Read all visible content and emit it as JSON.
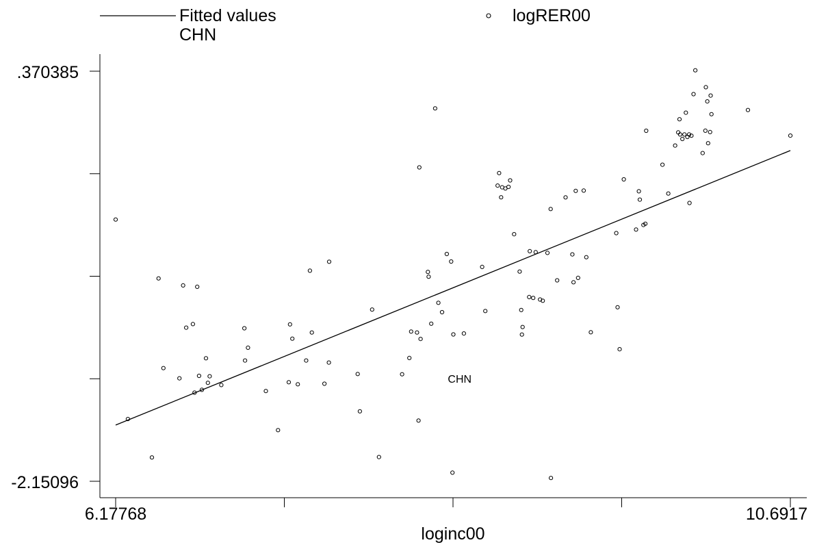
{
  "legend": {
    "line_label": "Fitted values",
    "marker_label": "logRER00",
    "point_label_caption": "CHN"
  },
  "chart_data": {
    "type": "scatter",
    "xlabel": "loginc00",
    "ylabel": "",
    "x_tick_labels": [
      "6.17768",
      "10.6917"
    ],
    "y_tick_labels": [
      ".370385",
      "-2.15096"
    ],
    "xlim": [
      6.17768,
      10.6917
    ],
    "ylim": [
      -2.15096,
      0.370385
    ],
    "legend_position": "top",
    "fit_line": {
      "name": "Fitted values",
      "x": [
        6.17768,
        10.6917
      ],
      "y": [
        -1.8053,
        -0.1174
      ]
    },
    "labeled_point": {
      "label": "CHN",
      "x": 8.4,
      "y": -1.52
    },
    "series": [
      {
        "name": "logRER00",
        "points": [
          [
            6.1777,
            -0.5418
          ],
          [
            6.2597,
            -1.7685
          ],
          [
            6.4202,
            -2.0044
          ],
          [
            6.4645,
            -0.9037
          ],
          [
            6.4974,
            -1.4553
          ],
          [
            6.6044,
            -1.5178
          ],
          [
            6.6289,
            -0.9465
          ],
          [
            6.6499,
            -1.2064
          ],
          [
            6.6944,
            -1.1845
          ],
          [
            6.7057,
            -1.6058
          ],
          [
            6.7233,
            -0.9551
          ],
          [
            6.7356,
            -1.5026
          ],
          [
            6.7546,
            -1.5885
          ],
          [
            6.7822,
            -1.3946
          ],
          [
            6.7947,
            -1.5456
          ],
          [
            6.8068,
            -1.5052
          ],
          [
            6.8845,
            -1.559
          ],
          [
            7.0389,
            -1.2101
          ],
          [
            7.0436,
            -1.4083
          ],
          [
            7.0629,
            -1.3296
          ],
          [
            7.1826,
            -1.596
          ],
          [
            7.264,
            -1.8367
          ],
          [
            7.3361,
            -1.5418
          ],
          [
            7.344,
            -1.1864
          ],
          [
            7.3599,
            -1.2742
          ],
          [
            7.3964,
            -1.5547
          ],
          [
            7.4524,
            -1.4083
          ],
          [
            7.4776,
            -0.8563
          ],
          [
            7.4904,
            -1.2364
          ],
          [
            7.5743,
            -1.5512
          ],
          [
            7.6041,
            -1.4209
          ],
          [
            7.6061,
            -0.8011
          ],
          [
            7.7968,
            -1.4913
          ],
          [
            7.8114,
            -1.7208
          ],
          [
            7.8934,
            -1.0954
          ],
          [
            7.9395,
            -2.0019
          ],
          [
            8.0943,
            -1.4932
          ],
          [
            8.1426,
            -1.3928
          ],
          [
            8.1545,
            -1.2305
          ],
          [
            8.1938,
            -1.2364
          ],
          [
            8.204,
            -1.7774
          ],
          [
            8.2094,
            -0.221
          ],
          [
            8.2178,
            -1.2757
          ],
          [
            8.2667,
            -0.8637
          ],
          [
            8.2719,
            -0.8934
          ],
          [
            8.2891,
            -1.1821
          ],
          [
            8.3154,
            0.1417
          ],
          [
            8.3365,
            -1.0534
          ],
          [
            8.3613,
            -1.1112
          ],
          [
            8.3929,
            -0.7533
          ],
          [
            8.4224,
            -0.7999
          ],
          [
            8.4312,
            -2.0978
          ],
          [
            8.4369,
            -1.2481
          ],
          [
            8.5076,
            -1.2422
          ],
          [
            8.6295,
            -0.833
          ],
          [
            8.651,
            -1.1041
          ],
          [
            8.7331,
            -0.3329
          ],
          [
            8.7434,
            -0.2561
          ],
          [
            8.7566,
            -0.4048
          ],
          [
            8.7636,
            -0.3435
          ],
          [
            8.7847,
            -0.3507
          ],
          [
            8.8061,
            -0.341
          ],
          [
            8.8169,
            -0.3008
          ],
          [
            8.8435,
            -0.6319
          ],
          [
            8.8805,
            -0.8618
          ],
          [
            8.8912,
            -1.0976
          ],
          [
            8.8959,
            -1.2488
          ],
          [
            8.9002,
            -1.2026
          ],
          [
            8.9443,
            -1.0182
          ],
          [
            8.9482,
            -0.7361
          ],
          [
            8.9713,
            -1.0238
          ],
          [
            8.9877,
            -0.742
          ],
          [
            9.0169,
            -1.0336
          ],
          [
            9.0353,
            -1.0411
          ],
          [
            9.0663,
            -0.7468
          ],
          [
            9.0882,
            -0.477
          ],
          [
            9.0898,
            -2.1309
          ],
          [
            9.1313,
            -0.9155
          ],
          [
            9.1876,
            -0.4055
          ],
          [
            9.2331,
            -0.7559
          ],
          [
            9.2408,
            -0.9273
          ],
          [
            9.2556,
            -0.3653
          ],
          [
            9.2717,
            -0.9002
          ],
          [
            9.309,
            -0.3635
          ],
          [
            9.3267,
            -0.7733
          ],
          [
            9.3565,
            -1.2346
          ],
          [
            9.5271,
            -0.6249
          ],
          [
            9.5359,
            -1.0811
          ],
          [
            9.5494,
            -1.339
          ],
          [
            9.5773,
            -0.2948
          ],
          [
            9.6595,
            -0.6032
          ],
          [
            9.6781,
            -0.368
          ],
          [
            9.6845,
            -0.4192
          ],
          [
            9.7089,
            -0.5752
          ],
          [
            9.7217,
            -0.5676
          ],
          [
            9.727,
            0.004
          ],
          [
            9.8359,
            -0.2048
          ],
          [
            9.8749,
            -0.3816
          ],
          [
            9.9209,
            -0.0869
          ],
          [
            9.9414,
            -0.0058
          ],
          [
            9.9502,
            0.0751
          ],
          [
            9.9541,
            -0.0184
          ],
          [
            9.9691,
            -0.0463
          ],
          [
            9.9832,
            -0.0184
          ],
          [
            9.9928,
            0.1154
          ],
          [
            10.0027,
            -0.0337
          ],
          [
            10.0141,
            -0.0184
          ],
          [
            10.0169,
            -0.4397
          ],
          [
            10.0296,
            -0.026
          ],
          [
            10.044,
            0.2295
          ],
          [
            10.0559,
            0.376
          ],
          [
            10.1048,
            -0.1329
          ],
          [
            10.1233,
            0.0044
          ],
          [
            10.1265,
            0.272
          ],
          [
            10.1359,
            0.1849
          ],
          [
            10.1416,
            -0.0723
          ],
          [
            10.1545,
            -0.004
          ],
          [
            10.1584,
            0.2207
          ],
          [
            10.164,
            0.1059
          ],
          [
            10.408,
            0.1317
          ],
          [
            10.6917,
            -0.0256
          ]
        ]
      }
    ]
  }
}
